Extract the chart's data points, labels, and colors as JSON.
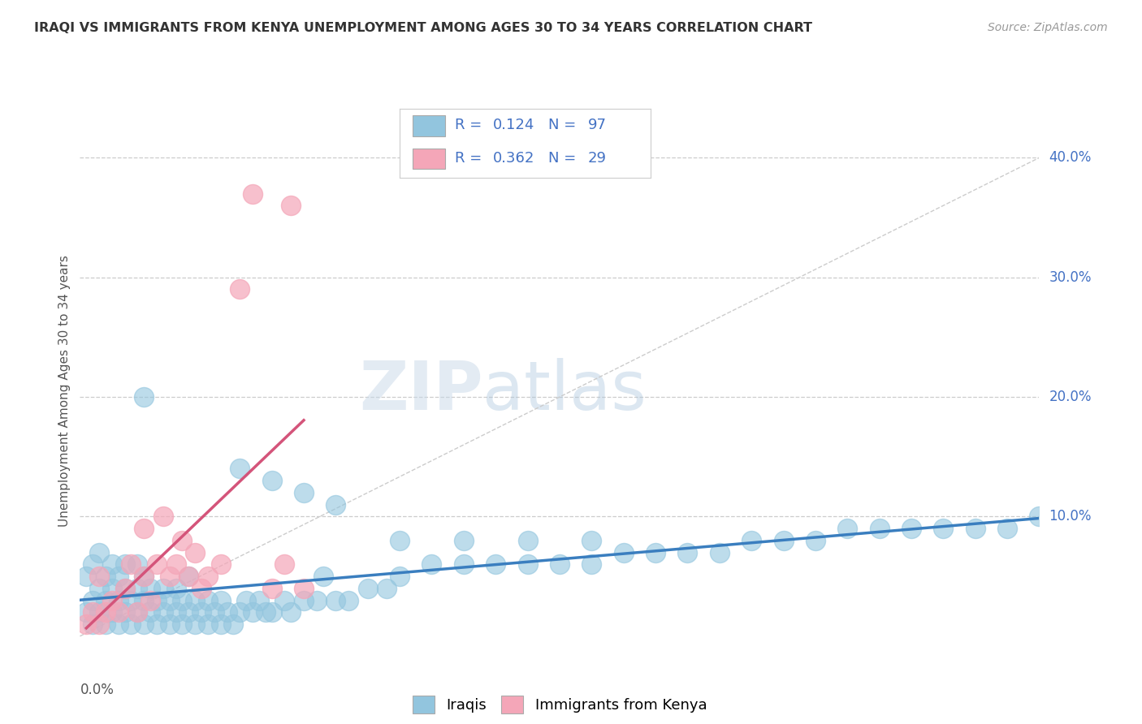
{
  "title": "IRAQI VS IMMIGRANTS FROM KENYA UNEMPLOYMENT AMONG AGES 30 TO 34 YEARS CORRELATION CHART",
  "source": "Source: ZipAtlas.com",
  "ylabel": "Unemployment Among Ages 30 to 34 years",
  "xmin": 0.0,
  "xmax": 0.15,
  "ymin": -0.025,
  "ymax": 0.435,
  "legend_entry1": "R =  0.124   N = 97",
  "legend_entry2": "R =  0.362   N = 29",
  "legend_bottom1": "Iraqis",
  "legend_bottom2": "Immigrants from Kenya",
  "iraqis_color": "#92c5de",
  "kenya_color": "#f4a6b8",
  "iraqis_line_color": "#3a7ebf",
  "kenya_line_color": "#d4547a",
  "watermark_zip": "ZIP",
  "watermark_atlas": "atlas",
  "title_fontsize": 12,
  "source_fontsize": 10,
  "tick_color": "#4472c4",
  "ytick_vals": [
    0.1,
    0.2,
    0.3,
    0.4
  ],
  "ytick_labels": [
    "10.0%",
    "20.0%",
    "30.0%",
    "40.0%"
  ],
  "iraq_x_data": [
    0.001,
    0.001,
    0.002,
    0.002,
    0.002,
    0.003,
    0.003,
    0.003,
    0.004,
    0.004,
    0.004,
    0.005,
    0.005,
    0.005,
    0.006,
    0.006,
    0.006,
    0.007,
    0.007,
    0.007,
    0.008,
    0.008,
    0.009,
    0.009,
    0.009,
    0.01,
    0.01,
    0.01,
    0.011,
    0.011,
    0.012,
    0.012,
    0.013,
    0.013,
    0.014,
    0.014,
    0.015,
    0.015,
    0.016,
    0.016,
    0.017,
    0.017,
    0.018,
    0.018,
    0.019,
    0.02,
    0.02,
    0.021,
    0.022,
    0.022,
    0.023,
    0.024,
    0.025,
    0.026,
    0.027,
    0.028,
    0.029,
    0.03,
    0.032,
    0.033,
    0.035,
    0.037,
    0.038,
    0.04,
    0.042,
    0.045,
    0.048,
    0.05,
    0.055,
    0.06,
    0.065,
    0.07,
    0.075,
    0.08,
    0.085,
    0.09,
    0.095,
    0.1,
    0.105,
    0.11,
    0.115,
    0.12,
    0.125,
    0.13,
    0.135,
    0.14,
    0.145,
    0.15,
    0.01,
    0.025,
    0.03,
    0.035,
    0.04,
    0.05,
    0.06,
    0.07,
    0.08
  ],
  "iraq_y_data": [
    0.02,
    0.05,
    0.01,
    0.03,
    0.06,
    0.02,
    0.04,
    0.07,
    0.01,
    0.03,
    0.05,
    0.02,
    0.04,
    0.06,
    0.01,
    0.03,
    0.05,
    0.02,
    0.04,
    0.06,
    0.01,
    0.03,
    0.02,
    0.04,
    0.06,
    0.01,
    0.03,
    0.05,
    0.02,
    0.04,
    0.01,
    0.03,
    0.02,
    0.04,
    0.01,
    0.03,
    0.02,
    0.04,
    0.01,
    0.03,
    0.02,
    0.05,
    0.01,
    0.03,
    0.02,
    0.01,
    0.03,
    0.02,
    0.01,
    0.03,
    0.02,
    0.01,
    0.02,
    0.03,
    0.02,
    0.03,
    0.02,
    0.02,
    0.03,
    0.02,
    0.03,
    0.03,
    0.05,
    0.03,
    0.03,
    0.04,
    0.04,
    0.05,
    0.06,
    0.06,
    0.06,
    0.06,
    0.06,
    0.06,
    0.07,
    0.07,
    0.07,
    0.07,
    0.08,
    0.08,
    0.08,
    0.09,
    0.09,
    0.09,
    0.09,
    0.09,
    0.09,
    0.1,
    0.2,
    0.14,
    0.13,
    0.12,
    0.11,
    0.08,
    0.08,
    0.08,
    0.08
  ],
  "kenya_x_data": [
    0.001,
    0.002,
    0.003,
    0.003,
    0.004,
    0.005,
    0.006,
    0.007,
    0.008,
    0.009,
    0.01,
    0.01,
    0.011,
    0.012,
    0.013,
    0.014,
    0.015,
    0.016,
    0.017,
    0.018,
    0.019,
    0.02,
    0.022,
    0.025,
    0.027,
    0.03,
    0.032,
    0.033,
    0.035
  ],
  "kenya_y_data": [
    0.01,
    0.02,
    0.01,
    0.05,
    0.02,
    0.03,
    0.02,
    0.04,
    0.06,
    0.02,
    0.05,
    0.09,
    0.03,
    0.06,
    0.1,
    0.05,
    0.06,
    0.08,
    0.05,
    0.07,
    0.04,
    0.05,
    0.06,
    0.29,
    0.37,
    0.04,
    0.06,
    0.36,
    0.04
  ]
}
